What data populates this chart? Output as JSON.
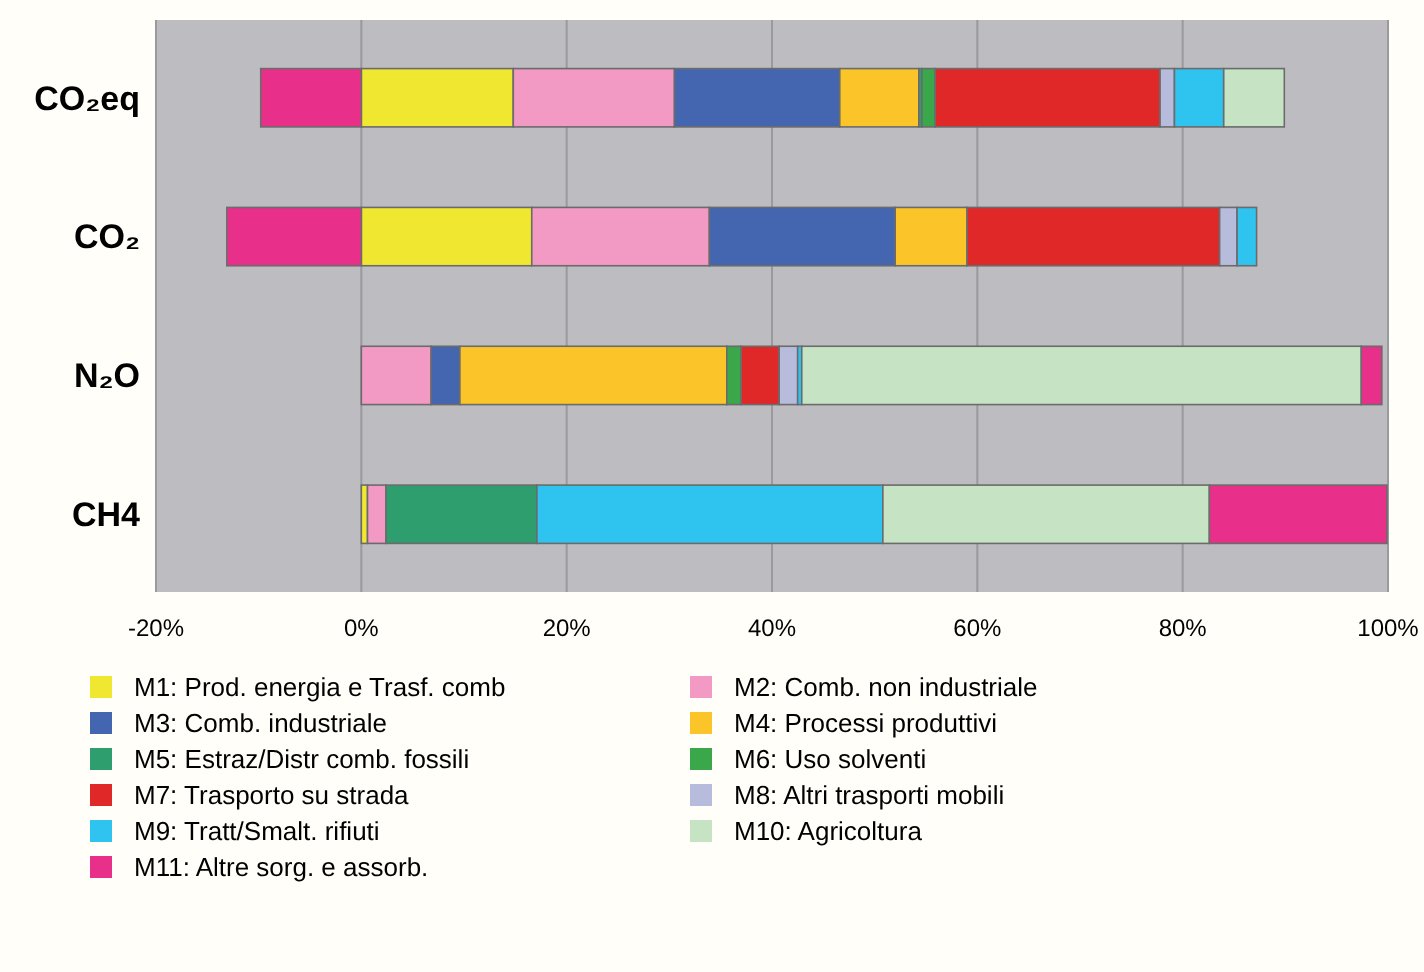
{
  "chart_data": {
    "type": "bar",
    "orientation": "horizontal",
    "stacked": true,
    "categories": [
      "CO₂eq",
      "CO₂",
      "N₂O",
      "CH4"
    ],
    "xlim": [
      -20,
      100
    ],
    "xticks": [
      {
        "value": -20,
        "label": "-20%"
      },
      {
        "value": 0,
        "label": "0%"
      },
      {
        "value": 20,
        "label": "20%"
      },
      {
        "value": 40,
        "label": "40%"
      },
      {
        "value": 60,
        "label": "60%"
      },
      {
        "value": 80,
        "label": "80%"
      },
      {
        "value": 100,
        "label": "100%"
      }
    ],
    "grid": "x",
    "legend": "bottom",
    "series": [
      {
        "name": "M1: Prod. energia e Trasf. comb",
        "color": "#f0e830",
        "values": [
          14.8,
          16.6,
          0,
          0.6
        ]
      },
      {
        "name": "M2: Comb. non industriale",
        "color": "#f29ac4",
        "values": [
          15.7,
          17.3,
          6.8,
          1.8
        ]
      },
      {
        "name": "M3: Comb. industriale",
        "color": "#4466b0",
        "values": [
          16.1,
          18.1,
          2.8,
          0
        ]
      },
      {
        "name": "M4: Processi produttivi",
        "color": "#fbc52a",
        "values": [
          7.7,
          7.0,
          26.0,
          0
        ]
      },
      {
        "name": "M5: Estraz/Distr comb. fossili",
        "color": "#2e9e6e",
        "values": [
          0.3,
          0,
          0,
          14.7
        ]
      },
      {
        "name": "M6: Uso solventi",
        "color": "#3aa84a",
        "values": [
          1.3,
          0,
          1.4,
          0
        ]
      },
      {
        "name": "M7: Trasporto su strada",
        "color": "#e02828",
        "values": [
          21.9,
          24.6,
          3.7,
          0
        ]
      },
      {
        "name": "M8: Altri trasporti mobili",
        "color": "#b8bcdc",
        "values": [
          1.4,
          1.7,
          1.8,
          0
        ]
      },
      {
        "name": "M9: Tratt/Smalt. rifiuti",
        "color": "#2ec4ef",
        "values": [
          4.8,
          1.9,
          0.4,
          33.7
        ]
      },
      {
        "name": "M10: Agricoltura",
        "color": "#c6e4c4",
        "values": [
          5.9,
          0,
          54.5,
          31.8
        ]
      },
      {
        "name": "M11: Altre sorg. e assorb.",
        "color": "#e8308a",
        "values": [
          -9.8,
          -13.1,
          2.0,
          17.3
        ]
      }
    ]
  }
}
